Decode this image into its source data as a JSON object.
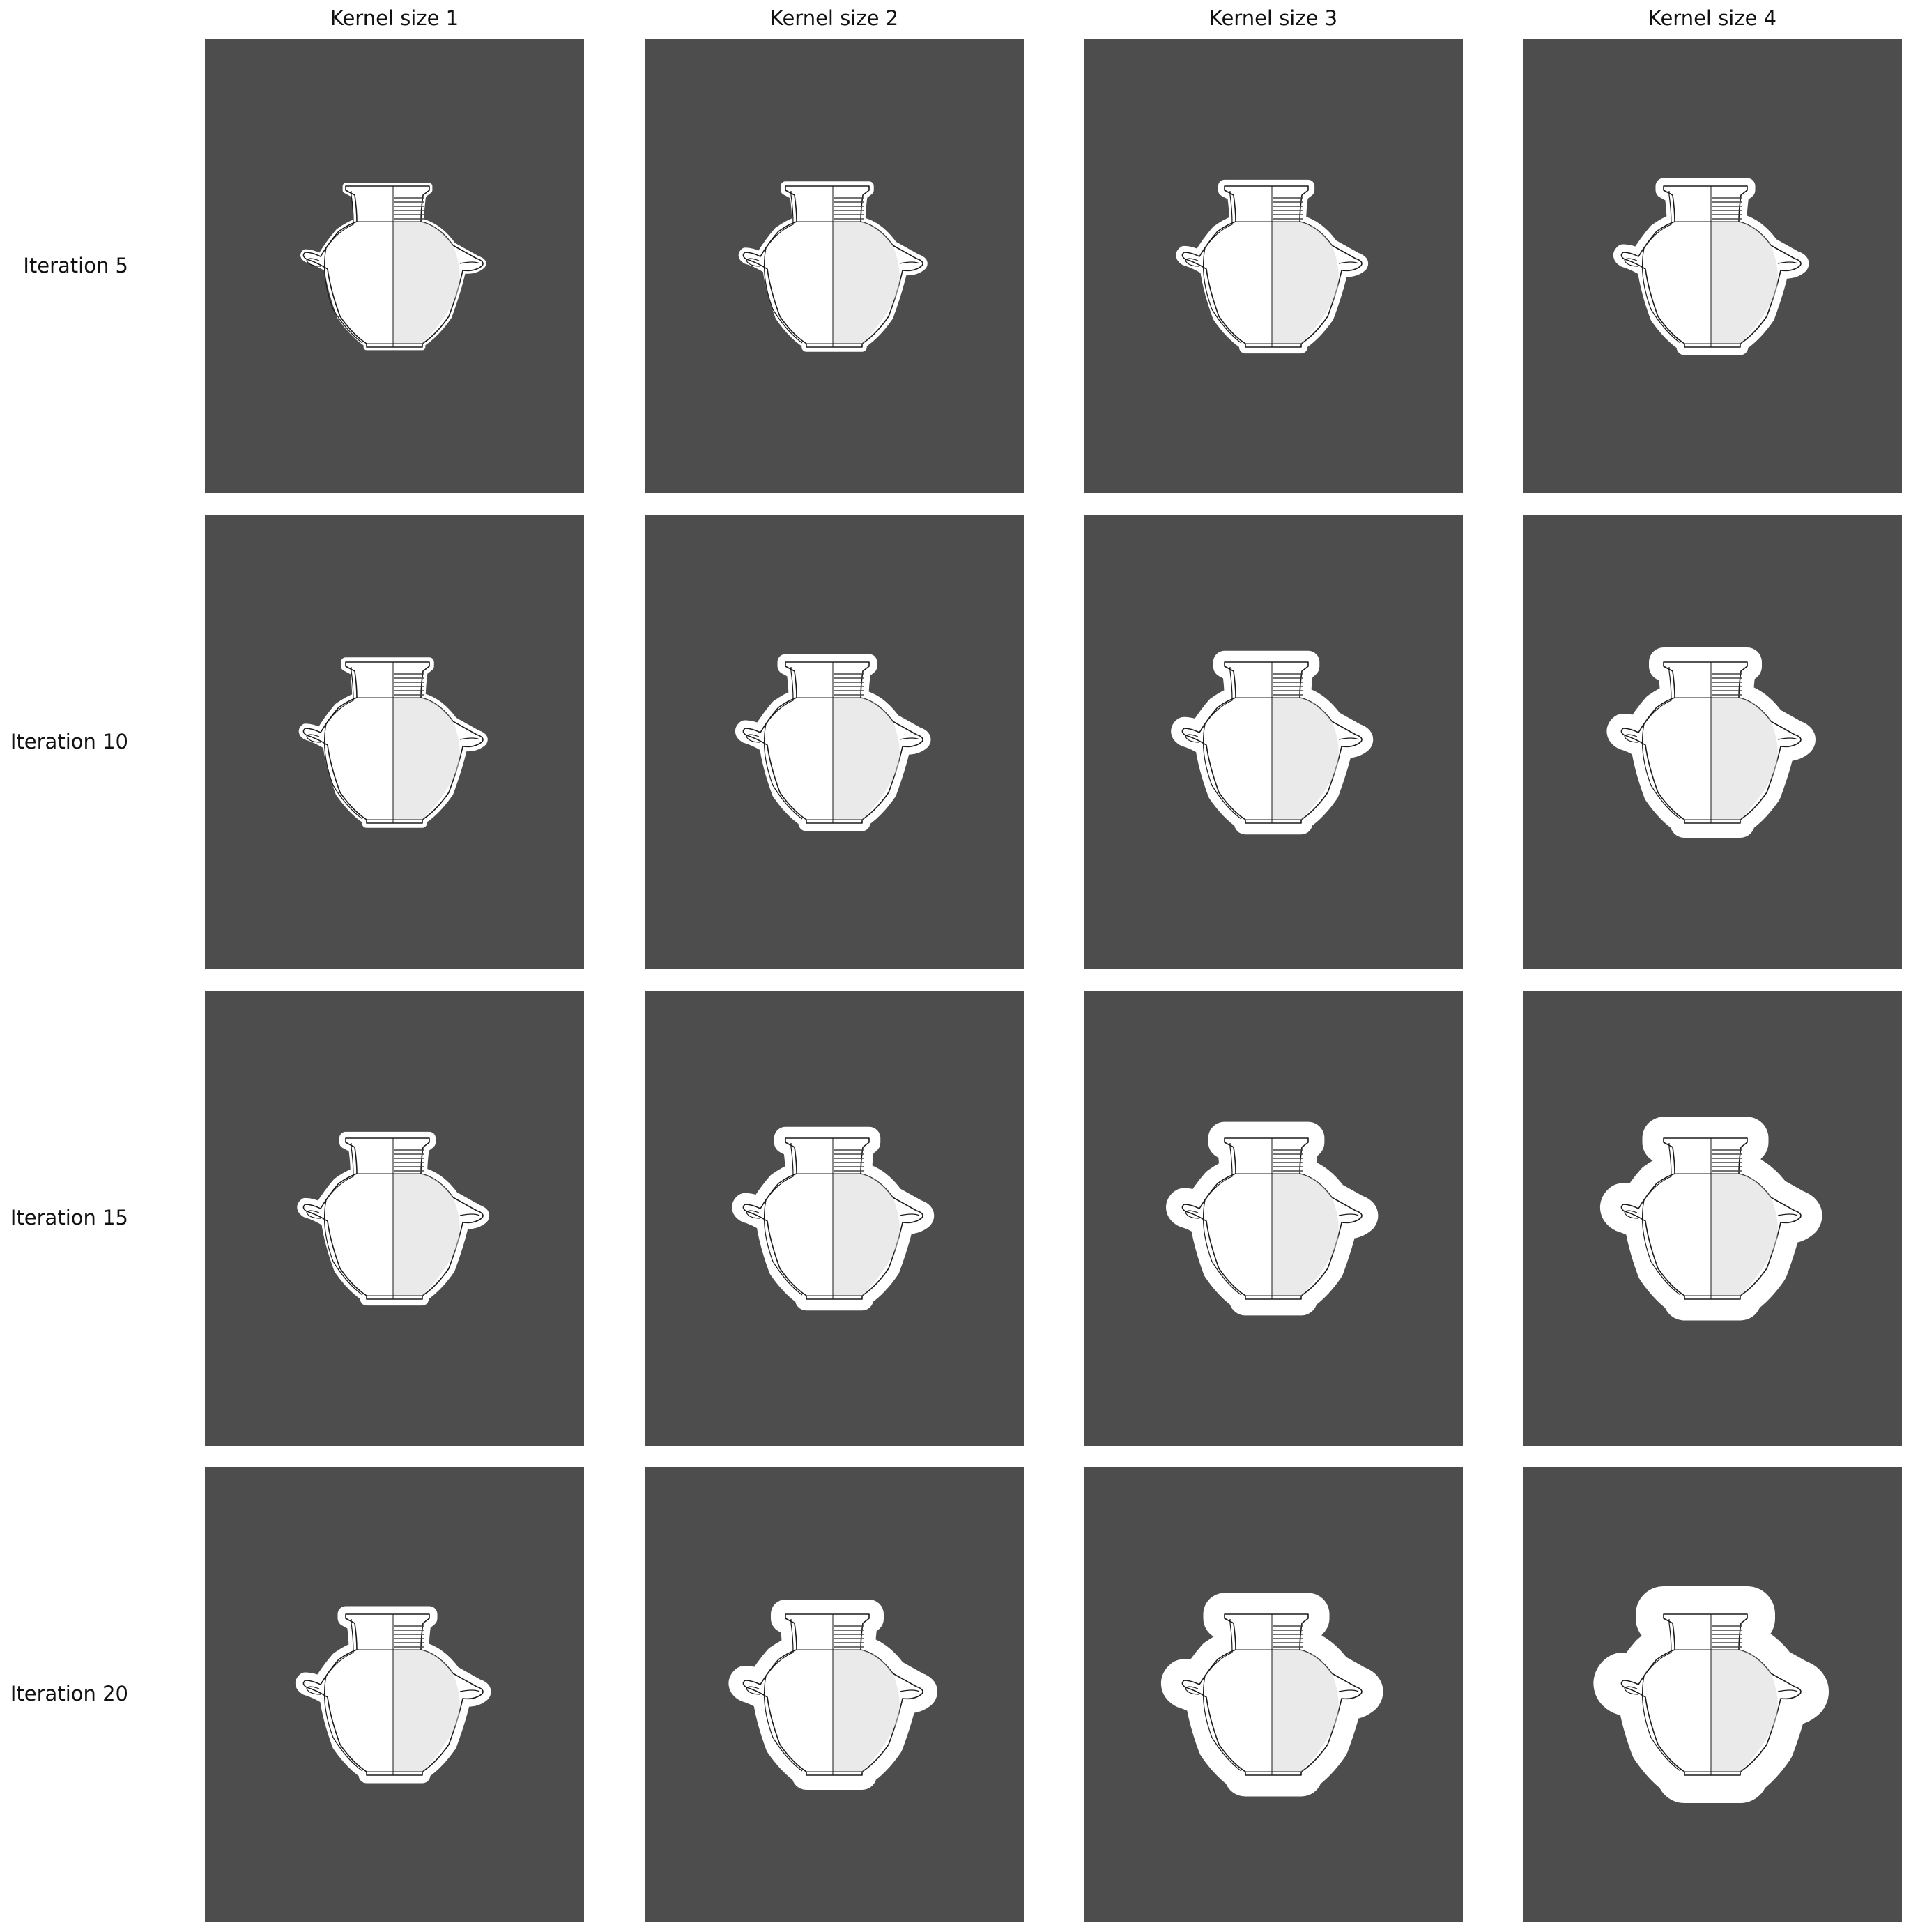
{
  "column_titles": [
    "Kernel size 1",
    "Kernel size 2",
    "Kernel size 3",
    "Kernel size 4"
  ],
  "row_labels": [
    "Iteration 5",
    "Iteration 10",
    "Iteration 15",
    "Iteration 20"
  ],
  "colors": {
    "panel_background": "#4d4d4d",
    "halo": "#ffffff",
    "vessel_line": "#1a1a1a"
  },
  "kernel_sizes": [
    1,
    2,
    3,
    4
  ],
  "iterations": [
    5,
    10,
    15,
    20
  ],
  "panel_content": "pottery-vessel-drawing-with-dilated-white-halo"
}
